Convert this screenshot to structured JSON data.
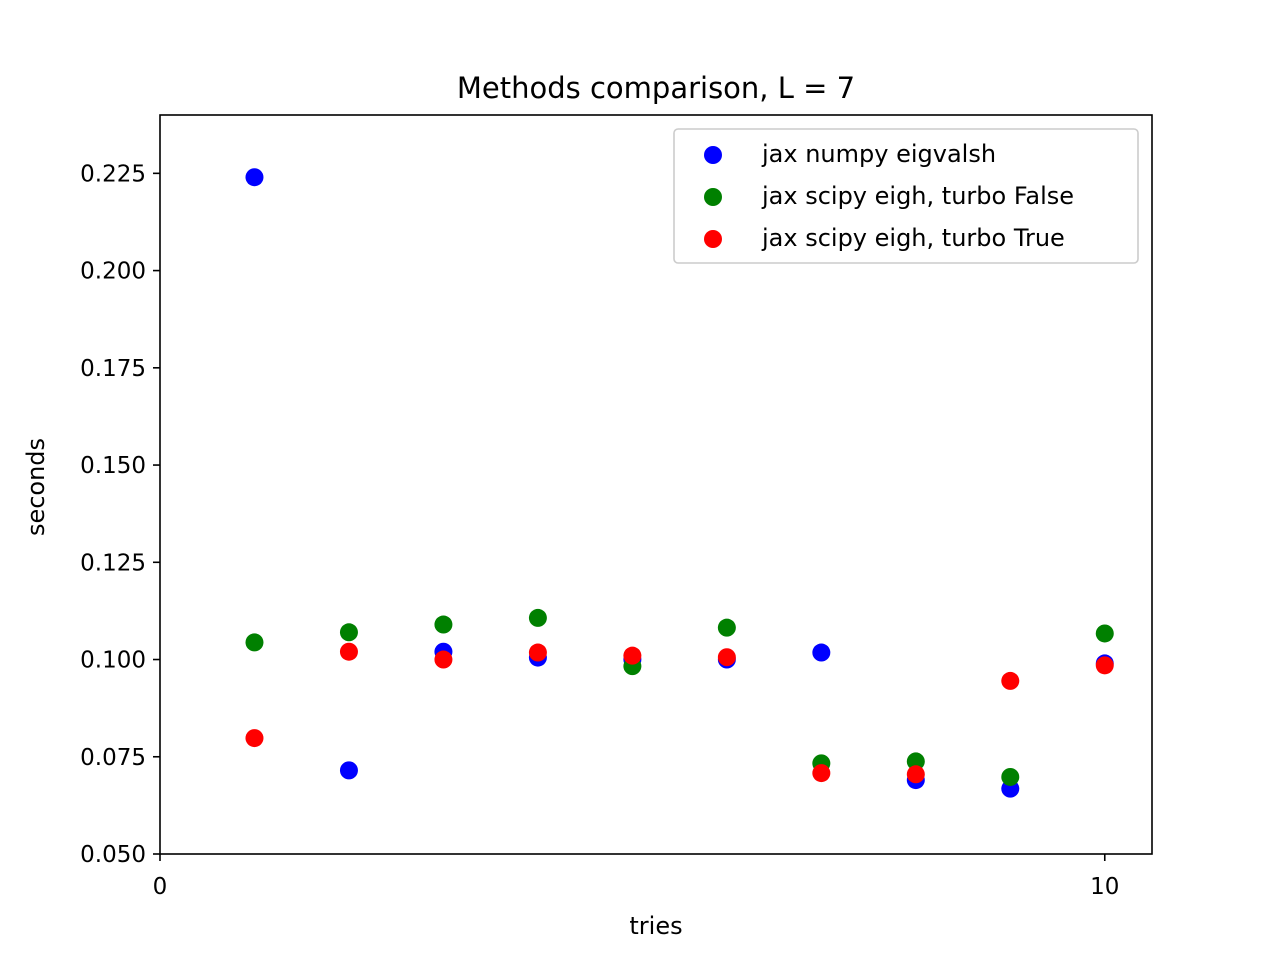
{
  "chart_data": {
    "type": "scatter",
    "title": "Methods comparison, L = 7",
    "xlabel": "tries",
    "ylabel": "seconds",
    "xlim": [
      0,
      10.5
    ],
    "ylim": [
      0.05,
      0.24
    ],
    "xticks": [
      0,
      10
    ],
    "xtick_labels": [
      "0",
      "10"
    ],
    "yticks": [
      0.05,
      0.075,
      0.1,
      0.125,
      0.15,
      0.175,
      0.2,
      0.225
    ],
    "ytick_labels": [
      "0.050",
      "0.075",
      "0.100",
      "0.125",
      "0.150",
      "0.175",
      "0.200",
      "0.225"
    ],
    "grid": false,
    "legend_position": "top-right",
    "series": [
      {
        "name": "jax numpy eigvalsh",
        "color": "#0000ff",
        "x": [
          1,
          2,
          3,
          4,
          5,
          6,
          7,
          8,
          9,
          10
        ],
        "y": [
          0.224,
          0.0715,
          0.102,
          0.1005,
          0.1,
          0.1,
          0.1018,
          0.069,
          0.0668,
          0.099
        ]
      },
      {
        "name": "jax scipy eigh, turbo False",
        "color": "#008000",
        "x": [
          1,
          2,
          3,
          4,
          5,
          6,
          7,
          8,
          9,
          10
        ],
        "y": [
          0.1044,
          0.107,
          0.109,
          0.1107,
          0.0983,
          0.1082,
          0.0733,
          0.0738,
          0.0698,
          0.1067
        ]
      },
      {
        "name": "jax scipy eigh, turbo True",
        "color": "#ff0000",
        "x": [
          1,
          2,
          3,
          4,
          5,
          6,
          7,
          8,
          9,
          10
        ],
        "y": [
          0.0798,
          0.102,
          0.1,
          0.1018,
          0.101,
          0.1006,
          0.0708,
          0.0705,
          0.0945,
          0.0985
        ]
      }
    ]
  }
}
